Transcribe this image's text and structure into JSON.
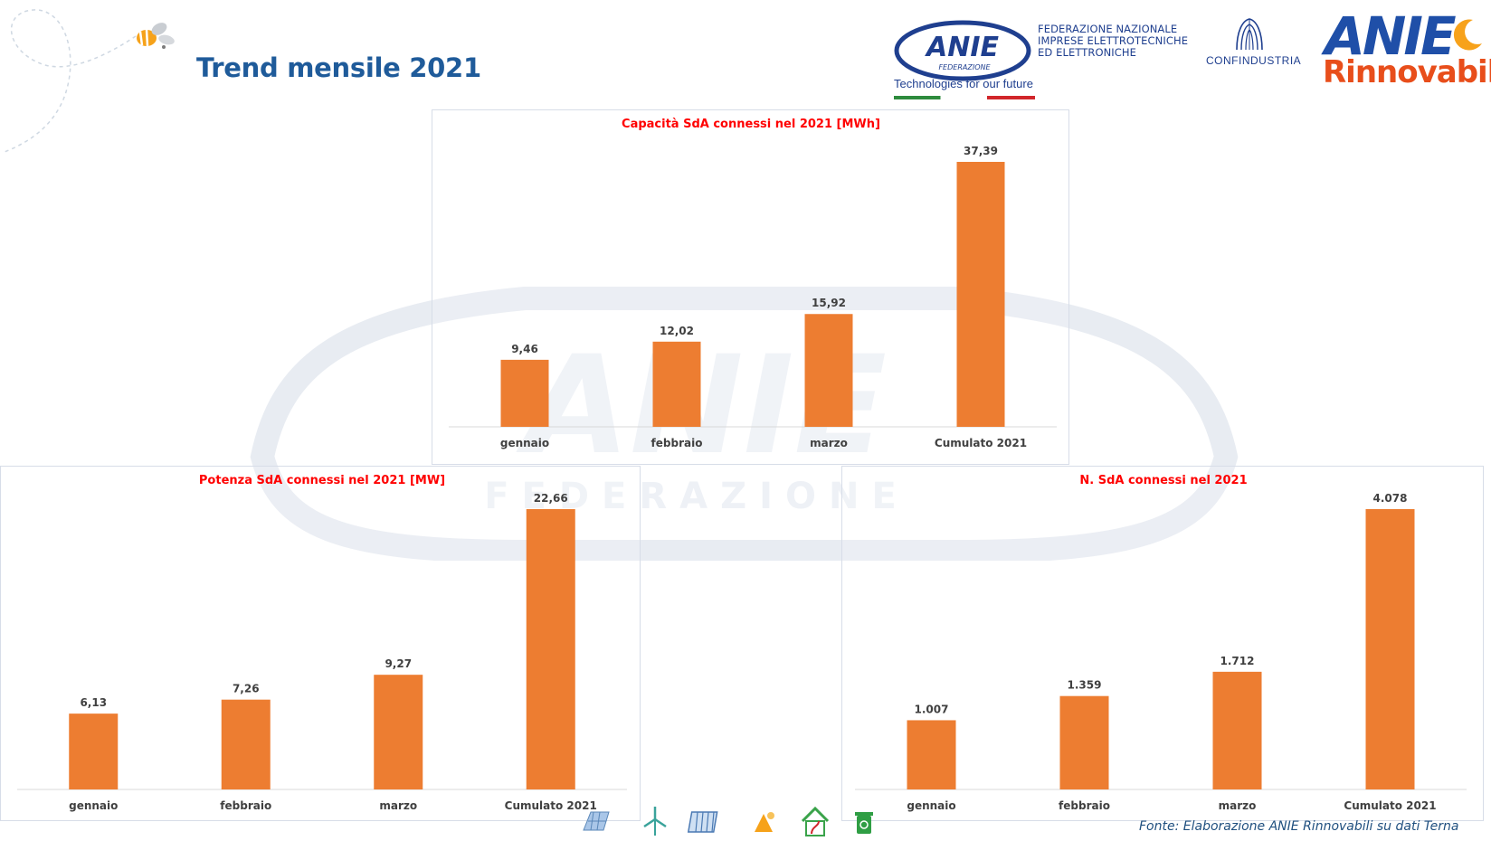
{
  "page": {
    "title": "Trend mensile 2021",
    "source": "Fonte: Elaborazione ANIE Rinnovabili su dati Terna"
  },
  "header": {
    "anie_logo": {
      "name": "ANIE",
      "sub": "FEDERAZIONE"
    },
    "federation_lines": [
      "FEDERAZIONE NAZIONALE",
      "IMPRESE ELETTROTECNICHE",
      "ED ELETTRONICHE"
    ],
    "tagline": "Technologies for our future",
    "confindustria": "CONFINDUSTRIA",
    "rinnovabili_logo": {
      "top": "ANIE",
      "bottom": "Rinnovabili"
    }
  },
  "watermark_text": {
    "name": "ANIE",
    "sub": "FEDERAZIONE"
  },
  "colors": {
    "bar": "#ed7d31",
    "chart_title": "#ff0000",
    "page_title": "#1f5b9a",
    "source_note": "#1f4f7f"
  },
  "chart_data": [
    {
      "id": "capacita",
      "type": "bar",
      "title": "Capacità SdA connessi nel 2021 [MWh]",
      "categories": [
        "gennaio",
        "febbraio",
        "marzo",
        "Cumulato 2021"
      ],
      "values": [
        9.46,
        12.02,
        15.92,
        37.39
      ],
      "value_labels": [
        "9,46",
        "12,02",
        "15,92",
        "37,39"
      ],
      "xlabel": "",
      "ylabel": "",
      "ylim": [
        0,
        37.39
      ],
      "grid": false,
      "legend": "none"
    },
    {
      "id": "potenza",
      "type": "bar",
      "title": "Potenza SdA connessi nel 2021 [MW]",
      "categories": [
        "gennaio",
        "febbraio",
        "marzo",
        "Cumulato 2021"
      ],
      "values": [
        6.13,
        7.26,
        9.27,
        22.66
      ],
      "value_labels": [
        "6,13",
        "7,26",
        "9,27",
        "22,66"
      ],
      "xlabel": "",
      "ylabel": "",
      "ylim": [
        0,
        22.66
      ],
      "grid": false,
      "legend": "none"
    },
    {
      "id": "numero",
      "type": "bar",
      "title": "N. SdA connessi nel 2021",
      "categories": [
        "gennaio",
        "febbraio",
        "marzo",
        "Cumulato 2021"
      ],
      "values": [
        1007,
        1359,
        1712,
        4078
      ],
      "value_labels": [
        "1.007",
        "1.359",
        "1.712",
        "4.078"
      ],
      "xlabel": "",
      "ylabel": "",
      "ylim": [
        0,
        4078
      ],
      "grid": false,
      "legend": "none"
    }
  ],
  "footer_icons": [
    "solar-panel-icon",
    "wind-turbine-icon",
    "solar-thermal-icon",
    "geothermal-icon",
    "green-house-icon",
    "recycle-bin-icon"
  ]
}
